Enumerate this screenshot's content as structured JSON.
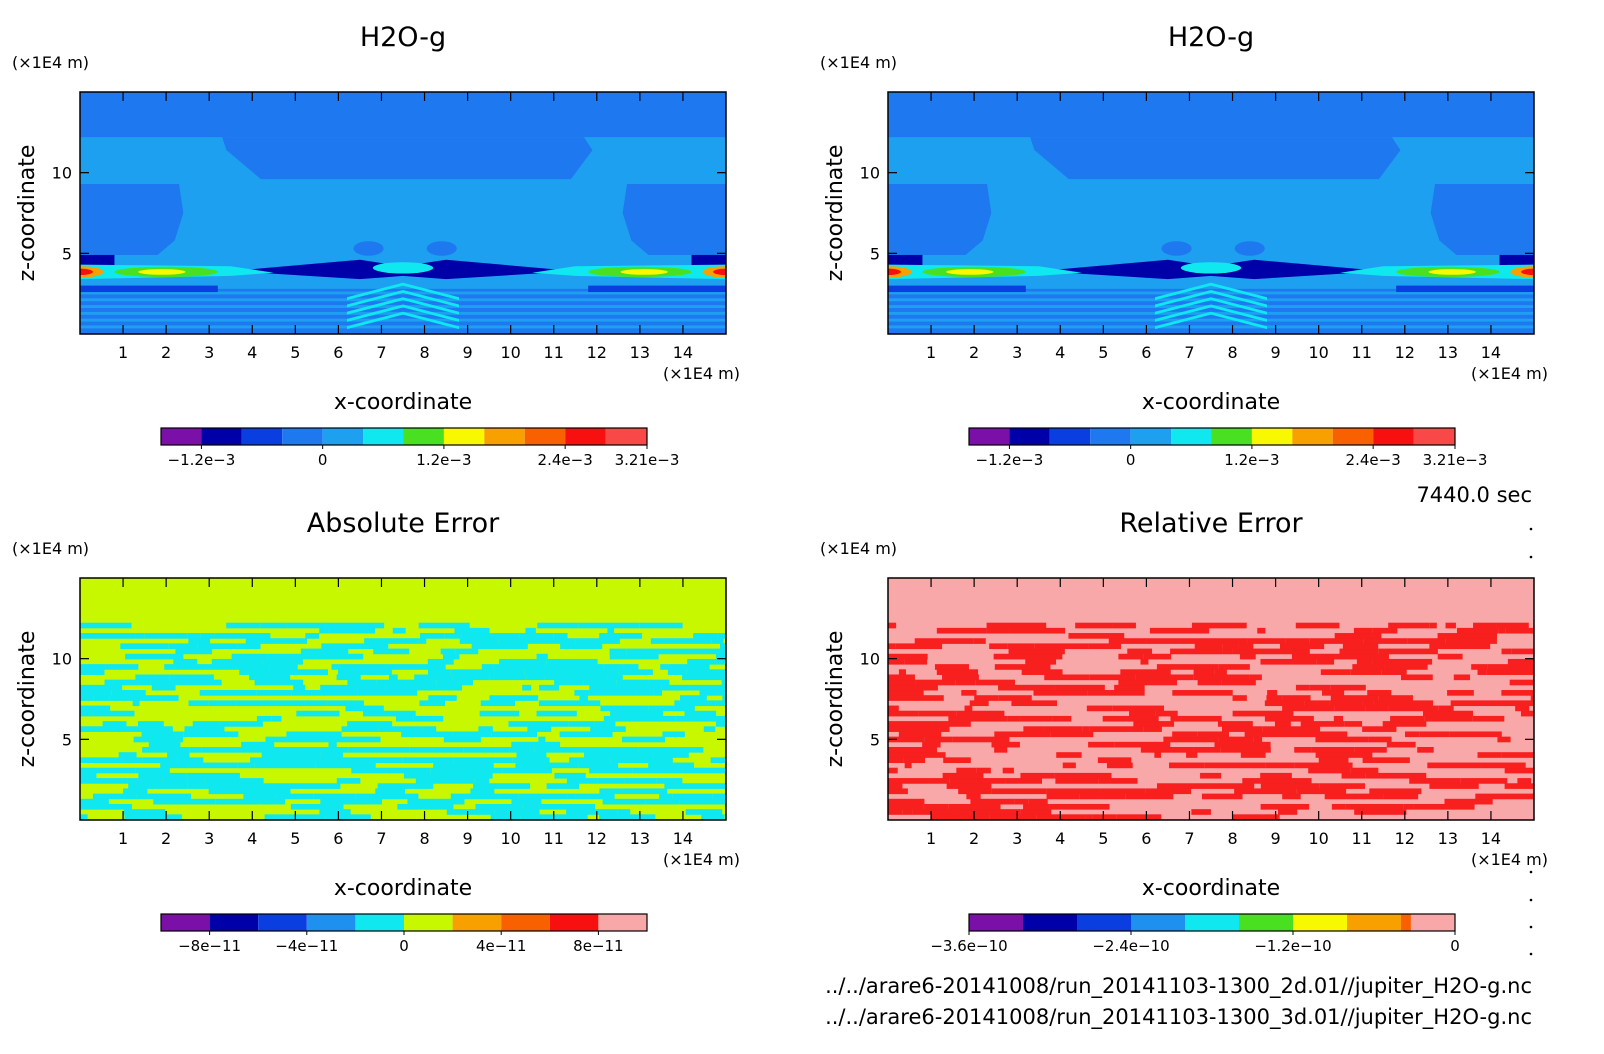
{
  "time_label": "7440.0 sec",
  "files": [
    "../../arare6-20141008/run_20141103-1300_2d.01//jupiter_H2O-g.nc",
    "../../arare6-20141008/run_20141103-1300_3d.01//jupiter_H2O-g.nc"
  ],
  "chart_data": [
    {
      "type": "heatmap",
      "title": "H2O-g",
      "xlabel": "x-coordinate",
      "ylabel": "z-coordinate",
      "x_unit": "(×1E4 m)",
      "y_unit": "(×1E4 m)",
      "xlim": [
        0,
        15
      ],
      "ylim": [
        0,
        15
      ],
      "x_ticks": [
        1,
        2,
        3,
        4,
        5,
        6,
        7,
        8,
        9,
        10,
        11,
        12,
        13,
        14
      ],
      "y_ticks": [
        5,
        10
      ],
      "pattern": "field",
      "levels": [
        -0.0016,
        -0.0012,
        -0.0008,
        -0.0004,
        0,
        0.0004,
        0.0008,
        0.0012,
        0.0016,
        0.002,
        0.0024,
        0.0028,
        0.00321
      ],
      "colors": [
        "#7a10a8",
        "#0000a8",
        "#0a3ee0",
        "#1e78f0",
        "#1ea0f0",
        "#10e8f0",
        "#48e020",
        "#f8f800",
        "#f8a000",
        "#f86000",
        "#f81010",
        "#f84848"
      ],
      "colorbar_labels": [
        {
          "value": -0.0012,
          "text": "−1.2e−3"
        },
        {
          "value": 0,
          "text": "0"
        },
        {
          "value": 0.0012,
          "text": "1.2e−3"
        },
        {
          "value": 0.0024,
          "text": "2.4e−3"
        },
        {
          "value": 0.00321,
          "text": "3.21e−3"
        }
      ]
    },
    {
      "type": "heatmap",
      "title": "H2O-g",
      "xlabel": "x-coordinate",
      "ylabel": "z-coordinate",
      "x_unit": "(×1E4 m)",
      "y_unit": "(×1E4 m)",
      "xlim": [
        0,
        15
      ],
      "ylim": [
        0,
        15
      ],
      "x_ticks": [
        1,
        2,
        3,
        4,
        5,
        6,
        7,
        8,
        9,
        10,
        11,
        12,
        13,
        14
      ],
      "y_ticks": [
        5,
        10
      ],
      "pattern": "field",
      "levels": [
        -0.0016,
        -0.0012,
        -0.0008,
        -0.0004,
        0,
        0.0004,
        0.0008,
        0.0012,
        0.0016,
        0.002,
        0.0024,
        0.0028,
        0.00321
      ],
      "colors": [
        "#7a10a8",
        "#0000a8",
        "#0a3ee0",
        "#1e78f0",
        "#1ea0f0",
        "#10e8f0",
        "#48e020",
        "#f8f800",
        "#f8a000",
        "#f86000",
        "#f81010",
        "#f84848"
      ],
      "colorbar_labels": [
        {
          "value": -0.0012,
          "text": "−1.2e−3"
        },
        {
          "value": 0,
          "text": "0"
        },
        {
          "value": 0.0012,
          "text": "1.2e−3"
        },
        {
          "value": 0.0024,
          "text": "2.4e−3"
        },
        {
          "value": 0.00321,
          "text": "3.21e−3"
        }
      ]
    },
    {
      "type": "heatmap",
      "title": "Absolute Error",
      "xlabel": "x-coordinate",
      "ylabel": "z-coordinate",
      "x_unit": "(×1E4 m)",
      "y_unit": "(×1E4 m)",
      "xlim": [
        0,
        15
      ],
      "ylim": [
        0,
        15
      ],
      "x_ticks": [
        1,
        2,
        3,
        4,
        5,
        6,
        7,
        8,
        9,
        10,
        11,
        12,
        13,
        14
      ],
      "y_ticks": [
        5,
        10
      ],
      "pattern": "abs",
      "levels": [
        -1e-10,
        -8e-11,
        -6e-11,
        -4e-11,
        -2e-11,
        0,
        2e-11,
        4e-11,
        6e-11,
        8e-11,
        1e-10
      ],
      "colors": [
        "#7a10a8",
        "#0000a8",
        "#0a3ee0",
        "#1e90f0",
        "#10e8f0",
        "#c8f800",
        "#f8a000",
        "#f86000",
        "#f81010",
        "#f8a8a8"
      ],
      "colorbar_labels": [
        {
          "value": -8e-11,
          "text": "−8e−11"
        },
        {
          "value": -4e-11,
          "text": "−4e−11"
        },
        {
          "value": 0,
          "text": "0"
        },
        {
          "value": 4e-11,
          "text": "4e−11"
        },
        {
          "value": 8e-11,
          "text": "8e−11"
        }
      ],
      "field_colors": [
        "#10e8f0",
        "#c8f800"
      ]
    },
    {
      "type": "heatmap",
      "title": "Relative Error",
      "xlabel": "x-coordinate",
      "ylabel": "z-coordinate",
      "x_unit": "(×1E4 m)",
      "y_unit": "(×1E4 m)",
      "xlim": [
        0,
        15
      ],
      "ylim": [
        0,
        15
      ],
      "x_ticks": [
        1,
        2,
        3,
        4,
        5,
        6,
        7,
        8,
        9,
        10,
        11,
        12,
        13,
        14
      ],
      "y_ticks": [
        5,
        10
      ],
      "pattern": "rel",
      "levels": [
        -3.6e-10,
        -3.2e-10,
        -2.8e-10,
        -2.4e-10,
        -2e-10,
        -1.6e-10,
        -1.2e-10,
        -8e-11,
        -4e-11,
        0
      ],
      "colors": [
        "#7a10a8",
        "#0000a8",
        "#0a3ee0",
        "#1e90f0",
        "#10e8f0",
        "#48e020",
        "#f8f800",
        "#f8a000",
        "#f86000",
        "#f81010",
        "#f8a8a8"
      ],
      "colorbar_labels": [
        {
          "value": -3.6e-10,
          "text": "−3.6e−10"
        },
        {
          "value": -2.4e-10,
          "text": "−2.4e−10"
        },
        {
          "value": -1.2e-10,
          "text": "−1.2e−10"
        },
        {
          "value": 0,
          "text": "0"
        }
      ],
      "field_colors": [
        "#f81f1f",
        "#f8a8a8"
      ]
    }
  ]
}
